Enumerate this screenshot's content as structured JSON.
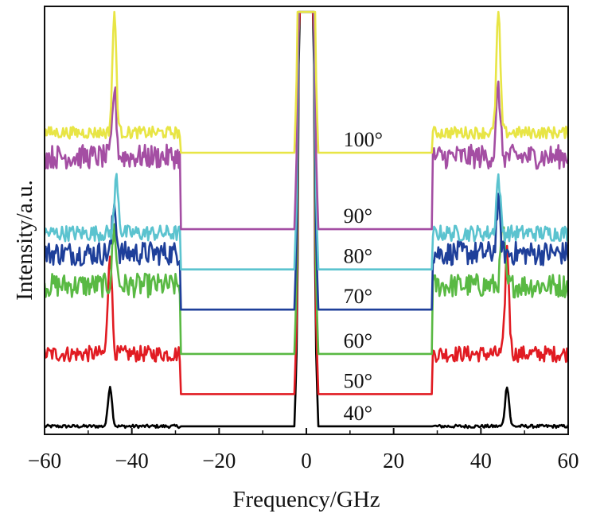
{
  "chart_data": {
    "type": "line",
    "title": "",
    "xlabel": "Frequency/GHz",
    "ylabel": "Intensity/a.u.",
    "xlim": [
      -60,
      60
    ],
    "ylim": [
      0,
      1
    ],
    "xticks": [
      -60,
      -40,
      -20,
      0,
      20,
      40,
      60
    ],
    "xtick_labels": [
      "−60",
      "−40",
      "−20",
      "0",
      "20",
      "40",
      "60"
    ],
    "grid": false,
    "legend": "none (series labeled inline)",
    "series": [
      {
        "name": "40°",
        "color": "#000000",
        "outer_level": 0.02,
        "inner_level": 0.02,
        "cutoff_ghz": 29,
        "peak_ghz": [
          -45,
          46
        ],
        "peak_height": 0.1,
        "noise": 0.004
      },
      {
        "name": "50°",
        "color": "#e11b22",
        "outer_level": 0.2,
        "inner_level": 0.1,
        "cutoff_ghz": 29,
        "peak_ghz": [
          -45,
          46
        ],
        "peak_height": 0.26,
        "noise": 0.02
      },
      {
        "name": "60°",
        "color": "#59b943",
        "outer_level": 0.37,
        "inner_level": 0.2,
        "cutoff_ghz": 29,
        "peak_ghz": [
          -44,
          45
        ],
        "peak_height": 0.14,
        "noise": 0.03
      },
      {
        "name": "70°",
        "color": "#1e3f9a",
        "outer_level": 0.45,
        "inner_level": 0.31,
        "cutoff_ghz": 29,
        "peak_ghz": [
          -44,
          44
        ],
        "peak_height": 0.12,
        "noise": 0.03
      },
      {
        "name": "80°",
        "color": "#5bc3cf",
        "outer_level": 0.5,
        "inner_level": 0.41,
        "cutoff_ghz": 29,
        "peak_ghz": [
          -43.5,
          44
        ],
        "peak_height": 0.14,
        "noise": 0.02
      },
      {
        "name": "90°",
        "color": "#a44ea3",
        "outer_level": 0.69,
        "inner_level": 0.51,
        "cutoff_ghz": 29,
        "peak_ghz": [
          -44,
          44
        ],
        "peak_height": 0.17,
        "noise": 0.03
      },
      {
        "name": "100°",
        "color": "#e8e545",
        "outer_level": 0.75,
        "inner_level": 0.7,
        "cutoff_ghz": 29,
        "peak_ghz": [
          -44,
          44
        ],
        "peak_height": 0.3,
        "noise": 0.015
      }
    ],
    "central_peak_ghz": [
      -1.5,
      1.5
    ]
  }
}
